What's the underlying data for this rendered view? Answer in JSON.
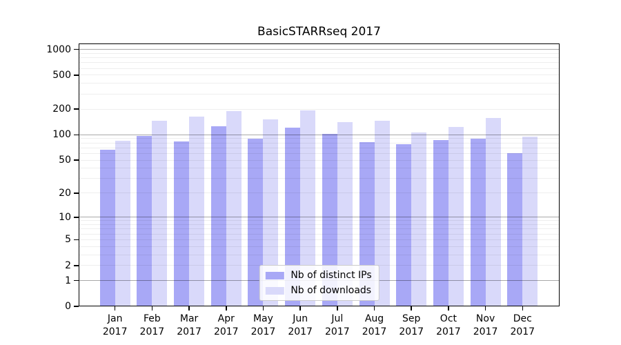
{
  "title": "BasicSTARRseq 2017",
  "chart_data": {
    "type": "bar",
    "title": "BasicSTARRseq 2017",
    "scale": "log10(value+1)",
    "categories": [
      "Jan",
      "Feb",
      "Mar",
      "Apr",
      "May",
      "Jun",
      "Jul",
      "Aug",
      "Sep",
      "Oct",
      "Nov",
      "Dec"
    ],
    "year_label": "2017",
    "series": [
      {
        "name": "Nb of distinct IPs",
        "color": "#a8a8f6",
        "values": [
          66,
          97,
          84,
          125,
          90,
          121,
          103,
          82,
          78,
          86,
          90,
          61
        ]
      },
      {
        "name": "Nb of downloads",
        "color": "#d9d9fa",
        "values": [
          85,
          145,
          163,
          190,
          153,
          195,
          141,
          147,
          107,
          123,
          158,
          95
        ]
      }
    ],
    "yticks": [
      0,
      1,
      2,
      5,
      10,
      20,
      50,
      100,
      200,
      500,
      1000
    ],
    "major_gridlines": [
      1,
      10,
      100,
      1000
    ],
    "ylim": [
      0,
      1175
    ],
    "xlabel": "",
    "ylabel": "",
    "grid": "on",
    "legend_position": "lower center",
    "colors": {
      "background": "#ffffff",
      "axis": "#000000",
      "major_grid": "#a8a8a8",
      "minor_grid": "#ededed"
    }
  }
}
